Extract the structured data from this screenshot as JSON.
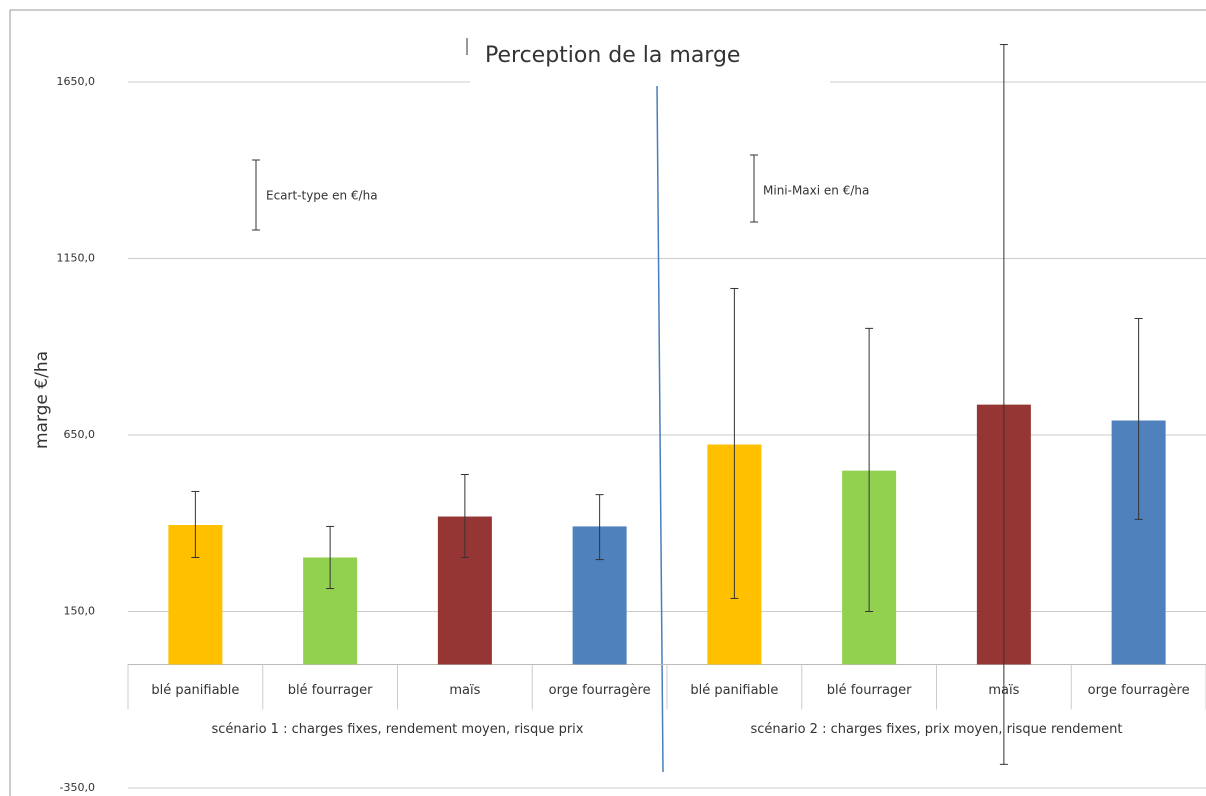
{
  "chart_data": {
    "type": "bar",
    "title": "Perception de la marge",
    "y_label": "marge €/ha",
    "categories": [
      "blé panifiable",
      "blé fourrager",
      "maïs",
      "orge fourragère",
      "blé panifiable",
      "blé fourrager",
      "maïs",
      "orge fourragère"
    ],
    "groups": [
      "scénario 1 : charges fixes, rendement moyen, risque prix",
      "scénario 2 : charges fixes, prix moyen, risque rendement"
    ],
    "annotations": [
      "Ecart-type en €/ha",
      "Mini-Maxi en €/ha"
    ],
    "values": [
      395,
      303,
      419,
      391,
      623,
      549,
      736,
      691
    ],
    "error_low": [
      303,
      215,
      303,
      297,
      187,
      150,
      -283,
      411
    ],
    "error_high": [
      490,
      391,
      538,
      481,
      1065,
      952,
      1756,
      980
    ],
    "colors": [
      "#ffc000",
      "#92d050",
      "#963634",
      "#4f81bd",
      "#ffc000",
      "#92d050",
      "#963634",
      "#4f81bd"
    ],
    "ylim": [
      -350,
      1800
    ],
    "yticks": [
      {
        "value": -350,
        "label": "-350,0"
      },
      {
        "value": 150,
        "label": "150,0"
      },
      {
        "value": 650,
        "label": "650,0"
      },
      {
        "value": 1150,
        "label": "1150,0"
      },
      {
        "value": 1650,
        "label": "1650,0"
      }
    ],
    "grid": true
  }
}
